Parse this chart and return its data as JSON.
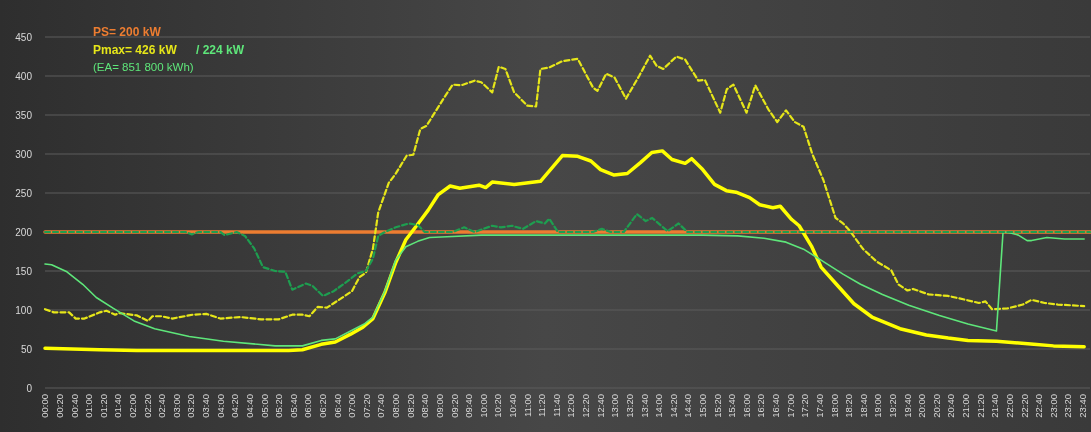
{
  "chart_data": {
    "type": "line",
    "xlim": [
      0,
      23.8333
    ],
    "ylim": [
      0,
      450
    ],
    "yticks": [
      0,
      50,
      100,
      150,
      200,
      250,
      300,
      350,
      400,
      450
    ],
    "grid": "y",
    "annotations": [
      "PS=  200 kW",
      "Pmax=  426 kW",
      "/ 224 kW",
      "(EA=  851 800 kWh)"
    ],
    "xticks": [
      {
        "value": 0,
        "label": "00:00"
      },
      {
        "value": 0.3333,
        "label": "00:20"
      },
      {
        "value": 0.6667,
        "label": "00:40"
      },
      {
        "value": 1,
        "label": "01:00"
      },
      {
        "value": 1.3333,
        "label": "01:20"
      },
      {
        "value": 1.6667,
        "label": "01:40"
      },
      {
        "value": 2,
        "label": "02:00"
      },
      {
        "value": 2.3333,
        "label": "02:20"
      },
      {
        "value": 2.6667,
        "label": "02:40"
      },
      {
        "value": 3,
        "label": "03:00"
      },
      {
        "value": 3.3333,
        "label": "03:20"
      },
      {
        "value": 3.6667,
        "label": "03:40"
      },
      {
        "value": 4,
        "label": "04:00"
      },
      {
        "value": 4.3333,
        "label": "04:20"
      },
      {
        "value": 4.6667,
        "label": "04:40"
      },
      {
        "value": 5,
        "label": "05:00"
      },
      {
        "value": 5.3333,
        "label": "05:20"
      },
      {
        "value": 5.6667,
        "label": "05:40"
      },
      {
        "value": 6,
        "label": "06:00"
      },
      {
        "value": 6.3333,
        "label": "06:20"
      },
      {
        "value": 6.6667,
        "label": "06:40"
      },
      {
        "value": 7,
        "label": "07:00"
      },
      {
        "value": 7.3333,
        "label": "07:20"
      },
      {
        "value": 7.6667,
        "label": "07:40"
      },
      {
        "value": 8,
        "label": "08:00"
      },
      {
        "value": 8.3333,
        "label": "08:20"
      },
      {
        "value": 8.6667,
        "label": "08:40"
      },
      {
        "value": 9,
        "label": "09:00"
      },
      {
        "value": 9.3333,
        "label": "09:20"
      },
      {
        "value": 9.6667,
        "label": "09:40"
      },
      {
        "value": 10,
        "label": "10:00"
      },
      {
        "value": 10.3333,
        "label": "10:20"
      },
      {
        "value": 10.6667,
        "label": "10:40"
      },
      {
        "value": 11,
        "label": "11:00"
      },
      {
        "value": 11.3333,
        "label": "11:20"
      },
      {
        "value": 11.6667,
        "label": "11:40"
      },
      {
        "value": 12,
        "label": "12:00"
      },
      {
        "value": 12.3333,
        "label": "12:20"
      },
      {
        "value": 12.6667,
        "label": "12:40"
      },
      {
        "value": 13,
        "label": "13:00"
      },
      {
        "value": 13.3333,
        "label": "13:20"
      },
      {
        "value": 13.6667,
        "label": "13:40"
      },
      {
        "value": 14,
        "label": "14:00"
      },
      {
        "value": 14.3333,
        "label": "14:20"
      },
      {
        "value": 14.6667,
        "label": "14:40"
      },
      {
        "value": 15,
        "label": "15:00"
      },
      {
        "value": 15.3333,
        "label": "15:20"
      },
      {
        "value": 15.6667,
        "label": "15:40"
      },
      {
        "value": 16,
        "label": "16:00"
      },
      {
        "value": 16.3333,
        "label": "16:20"
      },
      {
        "value": 16.6667,
        "label": "16:40"
      },
      {
        "value": 17,
        "label": "17:00"
      },
      {
        "value": 17.3333,
        "label": "17:20"
      },
      {
        "value": 17.6667,
        "label": "17:40"
      },
      {
        "value": 18,
        "label": "18:00"
      },
      {
        "value": 18.3333,
        "label": "18:20"
      },
      {
        "value": 18.6667,
        "label": "18:40"
      },
      {
        "value": 19,
        "label": "19:00"
      },
      {
        "value": 19.3333,
        "label": "19:20"
      },
      {
        "value": 19.6667,
        "label": "19:40"
      },
      {
        "value": 20,
        "label": "20:00"
      },
      {
        "value": 20.3333,
        "label": "20:20"
      },
      {
        "value": 20.6667,
        "label": "20:40"
      },
      {
        "value": 21,
        "label": "21:00"
      },
      {
        "value": 21.3333,
        "label": "21:20"
      },
      {
        "value": 21.6667,
        "label": "21:40"
      },
      {
        "value": 22,
        "label": "22:00"
      },
      {
        "value": 22.3333,
        "label": "22:20"
      },
      {
        "value": 22.6667,
        "label": "22:40"
      },
      {
        "value": 23,
        "label": "23:00"
      },
      {
        "value": 23.3333,
        "label": "23:20"
      },
      {
        "value": 23.6667,
        "label": "23:40"
      }
    ],
    "series": [
      {
        "color": "#ed7d31",
        "line_style": "solid",
        "x": [
          0,
          23.8333
        ],
        "values": [
          200,
          200
        ]
      },
      {
        "color": "#ffff00",
        "line_style": "solid",
        "x": [
          0,
          1.25,
          2.1,
          5.56,
          5.87,
          6.3,
          6.62,
          6.97,
          7.25,
          7.48,
          7.75,
          8,
          8.23,
          8.5,
          8.74,
          8.97,
          9.24,
          9.46,
          9.9,
          10.05,
          10.2,
          10.7,
          11.3,
          11.8,
          12.15,
          12.45,
          12.67,
          12.98,
          13.28,
          13.58,
          13.84,
          14.08,
          14.3,
          14.6,
          14.75,
          15,
          15.27,
          15.54,
          15.76,
          16.07,
          16.3,
          16.6,
          16.77,
          17.03,
          17.2,
          17.48,
          17.7,
          18.05,
          18.45,
          18.86,
          19.5,
          20.1,
          20.6,
          21.05,
          21.7,
          22.55,
          23,
          23.7
        ],
        "values": [
          51,
          49,
          48,
          48,
          49,
          56,
          59,
          69,
          78,
          89,
          122,
          161,
          190,
          210,
          228,
          248,
          259,
          256,
          260,
          257,
          264,
          261,
          265,
          298,
          297,
          291,
          280,
          273,
          275,
          289,
          302,
          304,
          293,
          288,
          294,
          280,
          261,
          253,
          251,
          244,
          235,
          231,
          233,
          216,
          208,
          182,
          155,
          133,
          108,
          91,
          76,
          68,
          64,
          61,
          60,
          56,
          54,
          53
        ]
      },
      {
        "color": "#e6e619",
        "line_style": "dashed",
        "x": [
          0,
          0.2,
          0.55,
          0.7,
          0.9,
          1.25,
          1.4,
          1.6,
          1.7,
          2.1,
          2.35,
          2.45,
          2.66,
          2.9,
          3.37,
          3.68,
          4,
          4.46,
          4.93,
          5.33,
          5.64,
          5.87,
          6.03,
          6.22,
          6.43,
          6.81,
          7,
          7.17,
          7.32,
          7.48,
          7.6,
          7.84,
          7.99,
          8.25,
          8.4,
          8.56,
          8.7,
          8.89,
          9.1,
          9.3,
          9.49,
          9.8,
          9.95,
          10.2,
          10.35,
          10.5,
          10.7,
          11,
          11.2,
          11.3,
          11.5,
          11.8,
          12.15,
          12.5,
          12.6,
          12.8,
          12.99,
          13.25,
          13.55,
          13.8,
          13.95,
          14.1,
          14.4,
          14.6,
          14.9,
          15.05,
          15.4,
          15.55,
          15.7,
          16,
          16.2,
          16.5,
          16.7,
          16.9,
          17.1,
          17.3,
          17.5,
          17.75,
          18.03,
          18.2,
          18.35,
          18.66,
          18.97,
          19.3,
          19.46,
          19.67,
          19.8,
          20.15,
          20.6,
          21,
          21.3,
          21.45,
          21.6,
          21.95,
          22.3,
          22.5,
          22.8,
          23.1,
          23.7
        ],
        "values": [
          101,
          97,
          97,
          89,
          89,
          97,
          99,
          94,
          96,
          93,
          86,
          92,
          92,
          89,
          94,
          95,
          89,
          91,
          88,
          88,
          94,
          94,
          92,
          104,
          103,
          117,
          124,
          142,
          148,
          179,
          225,
          263,
          274,
          298,
          299,
          332,
          336,
          353,
          372,
          389,
          388,
          394,
          392,
          379,
          412,
          409,
          379,
          362,
          361,
          409,
          411,
          419,
          422,
          385,
          381,
          403,
          398,
          371,
          400,
          426,
          413,
          409,
          425,
          421,
          394,
          395,
          353,
          383,
          389,
          353,
          388,
          357,
          341,
          356,
          341,
          335,
          300,
          267,
          218,
          211,
          202,
          178,
          162,
          151,
          133,
          125,
          127,
          120,
          118,
          113,
          109,
          111,
          101,
          102,
          107,
          113,
          109,
          107,
          105
        ]
      },
      {
        "color": "#5ee67a",
        "line_style": "solid",
        "x": [
          0,
          0.15,
          0.5,
          0.86,
          1.17,
          1.56,
          2.03,
          2.5,
          3.29,
          4.07,
          4.85,
          5.25,
          5.87,
          6.3,
          6.62,
          6.97,
          7.28,
          7.48,
          7.75,
          8,
          8.23,
          8.5,
          8.77,
          9.17,
          9.95,
          10.73,
          15,
          15.8,
          16.4,
          16.9,
          17.3,
          17.7,
          18.2,
          18.6,
          19.1,
          19.7,
          20.4,
          21.05,
          21.7,
          21.85,
          22,
          22.2,
          22.4,
          22.5,
          22.85,
          23.25,
          23.7
        ],
        "values": [
          159,
          158,
          149,
          133,
          116,
          102,
          86,
          76,
          66,
          60,
          56,
          54,
          54,
          61,
          63,
          73,
          82,
          91,
          124,
          164,
          181,
          188,
          193,
          194,
          196,
          196,
          196,
          195,
          192,
          187,
          178,
          164,
          146,
          133,
          120,
          106,
          93,
          82,
          73,
          200,
          199,
          196,
          189,
          189,
          193,
          191,
          191
        ]
      },
      {
        "color": "#1e9e50",
        "line_style": "dashed",
        "x": [
          0,
          3.2,
          3.35,
          3.5,
          4,
          4.1,
          4.37,
          4.56,
          4.77,
          4.97,
          5.25,
          5.48,
          5.64,
          5.95,
          6.1,
          6.34,
          6.58,
          6.9,
          7.13,
          7.32,
          7.48,
          7.6,
          7.72,
          8,
          8.3,
          8.5,
          8.66,
          9.3,
          9.56,
          9.8,
          10.2,
          10.4,
          10.65,
          10.9,
          11.2,
          11.4,
          11.5,
          11.7,
          12.5,
          12.7,
          12.9,
          13.2,
          13.5,
          13.7,
          13.85,
          14.2,
          14.45,
          14.65,
          23.8333
        ],
        "values": [
          200,
          200,
          197,
          200,
          200,
          196,
          200,
          195,
          179,
          155,
          150,
          149,
          126,
          134,
          131,
          118,
          124,
          137,
          147,
          150,
          166,
          195,
          199,
          206,
          211,
          209,
          200,
          200,
          206,
          200,
          208,
          206,
          208,
          204,
          214,
          211,
          217,
          200,
          200,
          204,
          200,
          200,
          223,
          214,
          218,
          201,
          211,
          200,
          200
        ]
      }
    ]
  }
}
